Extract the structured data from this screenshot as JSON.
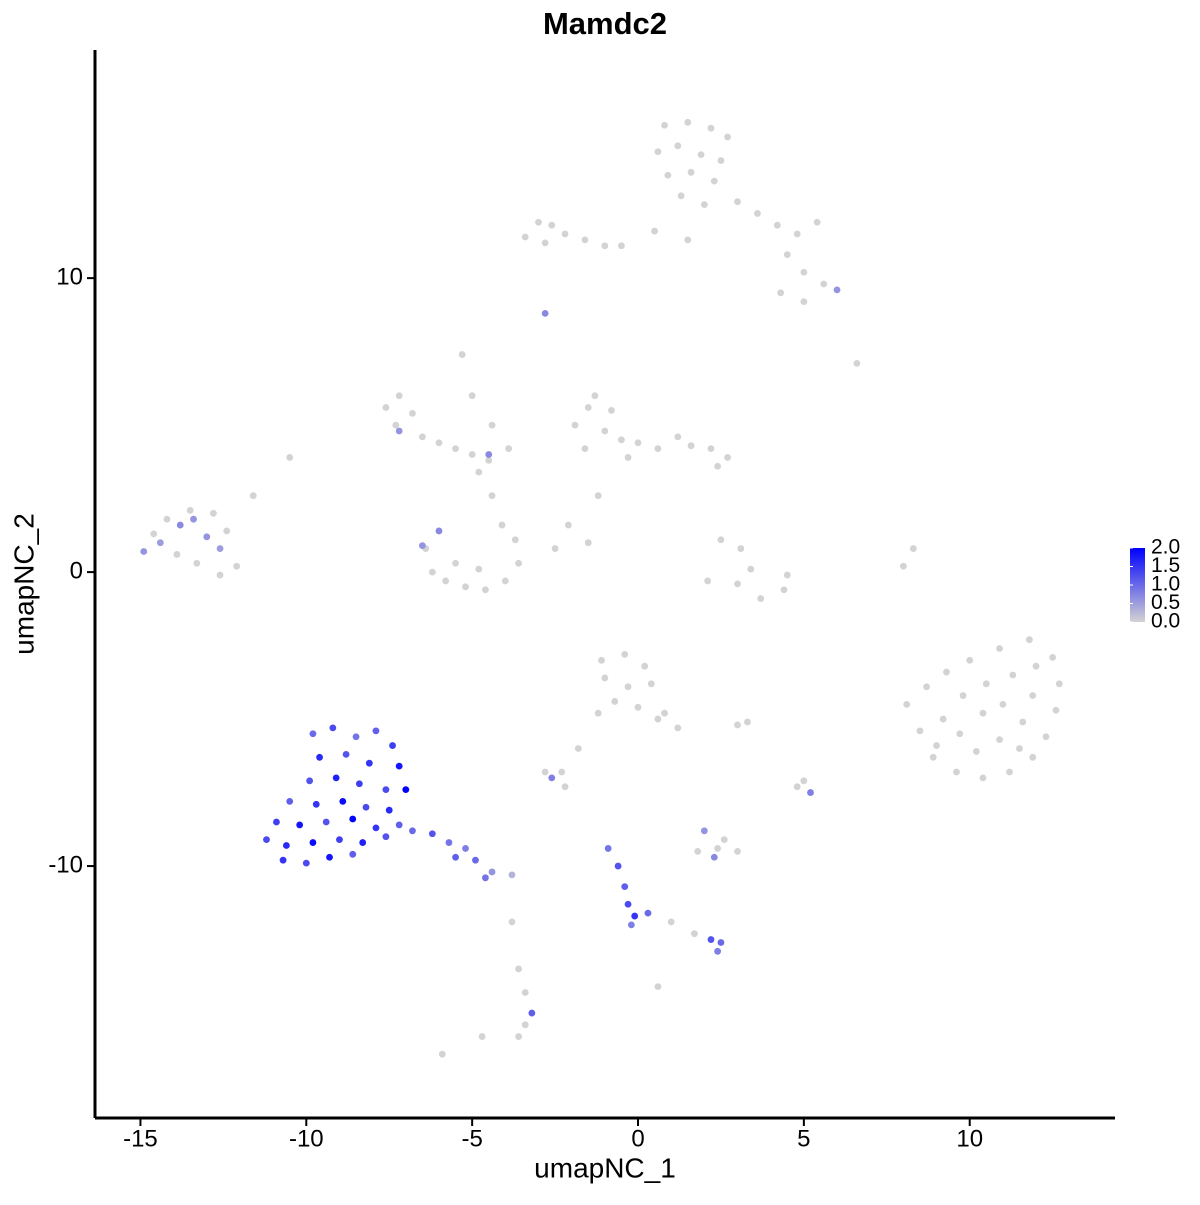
{
  "chart_data": {
    "type": "scatter",
    "title": "Mamdc2",
    "x_label": "umapNC_1",
    "y_label": "umapNC_2",
    "xlim": [
      -16.37,
      14.38
    ],
    "ylim": [
      -18.57,
      17.76
    ],
    "xticks": [
      -15,
      -10,
      -5,
      0,
      5,
      10
    ],
    "yticks": [
      -10,
      0,
      10
    ],
    "low_color": "#d3d3d3",
    "high_color": "#0000ff",
    "colorbar_lim": [
      0,
      2
    ],
    "colorbar_ticks": [
      {
        "value": 0,
        "label": "0.0"
      },
      0.5,
      {
        "value": 1,
        "label": "1.0"
      },
      1.5,
      {
        "value": 2,
        "label": "2.0"
      }
    ],
    "x": [
      0.8,
      1.5,
      2.2,
      2.7,
      0.6,
      1.2,
      1.9,
      2.5,
      0.9,
      1.6,
      2.3,
      1.3,
      2.0,
      3.0,
      3.6,
      4.2,
      4.8,
      5.4,
      4.5,
      5.0,
      5.6,
      6.0,
      4.3,
      5.0,
      0.5,
      -0.5,
      1.5,
      -3.4,
      -3.0,
      -2.6,
      -2.8,
      -2.2,
      -1.6,
      -1.0,
      -2.8,
      -7.6,
      -7.2,
      -6.8,
      -7.3,
      -6.5,
      -6.0,
      -5.5,
      -5.0,
      -4.5,
      -4.8,
      -5.3,
      -5.0,
      -4.4,
      -3.9,
      -7.2,
      -4.5,
      -6.4,
      -6.2,
      -5.8,
      -5.2,
      -4.6,
      -4.0,
      -3.6,
      -3.7,
      -4.1,
      -5.5,
      -4.8,
      -4.4,
      -6.0,
      -6.5,
      -1.9,
      -1.5,
      -1.3,
      -0.8,
      -1.0,
      -1.6,
      -0.5,
      0.0,
      0.6,
      1.2,
      1.6,
      2.2,
      2.7,
      2.4,
      -0.3,
      -1.2,
      -2.1,
      -2.5,
      -1.5,
      -14.9,
      -14.6,
      -14.2,
      -13.5,
      -12.8,
      -12.4,
      -12.1,
      -12.6,
      -13.3,
      -13.9,
      -14.4,
      -13.8,
      -13.0,
      -12.6,
      -13.4,
      -11.6,
      -10.5,
      2.5,
      3.1,
      3.4,
      3.0,
      2.1,
      3.7,
      4.4,
      4.5,
      8.0,
      8.3,
      8.1,
      8.7,
      9.3,
      10.0,
      10.9,
      11.8,
      12.5,
      12.7,
      12.6,
      12.3,
      11.9,
      11.2,
      10.4,
      9.6,
      8.9,
      8.5,
      9.2,
      9.8,
      10.5,
      11.3,
      11.9,
      11.6,
      10.9,
      10.2,
      9.7,
      10.4,
      11.0,
      9.0,
      11.5,
      12.0,
      6.6,
      -1.1,
      -0.4,
      0.2,
      0.4,
      -0.3,
      -1.0,
      -0.7,
      0.0,
      0.8,
      1.2,
      0.6,
      -1.2,
      -9.8,
      -9.2,
      -8.5,
      -7.9,
      -7.4,
      -9.6,
      -8.8,
      -8.1,
      -7.2,
      -9.9,
      -9.1,
      -8.4,
      -7.6,
      -7.0,
      -10.5,
      -9.7,
      -8.9,
      -8.2,
      -7.5,
      -10.9,
      -10.2,
      -9.4,
      -8.6,
      -7.9,
      -7.2,
      -11.2,
      -10.6,
      -9.8,
      -9.0,
      -8.3,
      -7.6,
      -10.7,
      -10.0,
      -9.3,
      -8.6,
      -6.8,
      -6.2,
      -5.7,
      -5.2,
      -4.9,
      -4.4,
      -3.8,
      -5.5,
      -4.6,
      -2.8,
      -2.3,
      -2.6,
      -1.8,
      -2.2,
      1.8,
      2.4,
      3.0,
      2.3,
      2.0,
      2.6,
      5.0,
      5.2,
      4.8,
      3.0,
      3.3,
      -0.9,
      -0.6,
      -0.4,
      -0.3,
      -0.1,
      -0.2,
      0.3,
      1.0,
      1.7,
      2.2,
      2.5,
      2.4,
      0.6,
      -3.6,
      -3.4,
      -3.2,
      -3.4,
      -3.6,
      -4.7,
      -5.9,
      -3.8
    ],
    "y": [
      15.2,
      15.3,
      15.1,
      14.8,
      14.3,
      14.5,
      14.2,
      14.0,
      13.5,
      13.6,
      13.3,
      12.8,
      12.5,
      12.6,
      12.2,
      11.8,
      11.5,
      11.9,
      10.8,
      10.2,
      9.8,
      9.6,
      9.5,
      9.2,
      11.6,
      11.1,
      11.3,
      11.4,
      11.9,
      11.8,
      11.2,
      11.5,
      11.3,
      11.1,
      8.8,
      5.6,
      6.0,
      5.4,
      5.0,
      4.6,
      4.4,
      4.2,
      4.0,
      3.8,
      3.4,
      7.4,
      6.0,
      5.0,
      4.2,
      4.8,
      4.0,
      0.8,
      0.0,
      -0.3,
      -0.5,
      -0.6,
      -0.3,
      0.3,
      1.1,
      1.6,
      0.3,
      0.1,
      2.6,
      1.4,
      0.9,
      5.0,
      5.6,
      6.0,
      5.5,
      4.8,
      4.2,
      4.5,
      4.4,
      4.2,
      4.6,
      4.3,
      4.2,
      3.9,
      3.6,
      3.9,
      2.6,
      1.6,
      0.8,
      1.0,
      0.7,
      1.3,
      1.8,
      2.1,
      2.0,
      1.4,
      0.2,
      -0.1,
      0.3,
      0.6,
      1.0,
      1.6,
      1.2,
      0.8,
      1.8,
      2.6,
      3.9,
      1.1,
      0.8,
      0.1,
      -0.4,
      -0.3,
      -0.9,
      -0.6,
      -0.1,
      0.2,
      0.8,
      -4.5,
      -3.9,
      -3.4,
      -3.0,
      -2.6,
      -2.3,
      -2.9,
      -3.8,
      -4.7,
      -5.6,
      -6.3,
      -6.8,
      -7.0,
      -6.8,
      -6.3,
      -5.4,
      -5.0,
      -4.2,
      -3.8,
      -3.5,
      -4.2,
      -5.1,
      -5.7,
      -6.1,
      -5.5,
      -4.8,
      -4.5,
      -5.9,
      -6.0,
      -3.2,
      7.1,
      -3.0,
      -2.8,
      -3.2,
      -3.8,
      -3.9,
      -3.6,
      -4.4,
      -4.6,
      -4.8,
      -5.3,
      -5.0,
      -4.8,
      -5.5,
      -5.3,
      -5.6,
      -5.4,
      -5.9,
      -6.3,
      -6.2,
      -6.5,
      -6.6,
      -7.1,
      -7.0,
      -7.2,
      -7.4,
      -7.4,
      -7.8,
      -7.9,
      -7.8,
      -8.0,
      -8.1,
      -8.5,
      -8.6,
      -8.5,
      -8.4,
      -8.7,
      -8.6,
      -9.1,
      -9.3,
      -9.2,
      -9.1,
      -9.2,
      -9.0,
      -9.8,
      -9.9,
      -9.7,
      -9.6,
      -8.8,
      -8.9,
      -9.2,
      -9.4,
      -9.8,
      -10.2,
      -10.3,
      -9.7,
      -10.4,
      -6.8,
      -6.8,
      -7.0,
      -6.0,
      -7.3,
      -9.5,
      -9.4,
      -9.5,
      -9.7,
      -8.8,
      -9.1,
      -7.1,
      -7.5,
      -7.3,
      -5.2,
      -5.1,
      -9.4,
      -10.0,
      -10.7,
      -11.3,
      -11.7,
      -12.0,
      -11.6,
      -11.9,
      -12.3,
      -12.5,
      -12.6,
      -12.9,
      -14.1,
      -13.5,
      -14.3,
      -15.0,
      -15.4,
      -15.8,
      -15.8,
      -16.4,
      -11.9
    ],
    "values": [
      0,
      0,
      0,
      0,
      0,
      0,
      0,
      0,
      0,
      0,
      0,
      0,
      0,
      0,
      0,
      0,
      0,
      0,
      0,
      0,
      0,
      0.6,
      0,
      0,
      0,
      0,
      0,
      0,
      0,
      0,
      0,
      0,
      0,
      0,
      0.7,
      0,
      0,
      0,
      0,
      0,
      0,
      0,
      0,
      0,
      0,
      0,
      0,
      0,
      0,
      0.6,
      0.7,
      0,
      0,
      0,
      0,
      0,
      0,
      0,
      0,
      0,
      0,
      0,
      0,
      0.7,
      0.6,
      0,
      0,
      0,
      0,
      0,
      0,
      0,
      0,
      0,
      0,
      0,
      0,
      0,
      0,
      0,
      0,
      0,
      0,
      0,
      0.6,
      0,
      0,
      0,
      0,
      0,
      0,
      0,
      0,
      0,
      0.5,
      0.7,
      0.6,
      0.5,
      0.6,
      0,
      0,
      0,
      0,
      0,
      0,
      0,
      0,
      0,
      0,
      0,
      0,
      0,
      0,
      0,
      0,
      0,
      0,
      0,
      0,
      0,
      0,
      0,
      0,
      0,
      0,
      0,
      0,
      0,
      0,
      0,
      0,
      0,
      0,
      0,
      0,
      0,
      0,
      0,
      0,
      0,
      0,
      0,
      0,
      0,
      0,
      0,
      0,
      0,
      0,
      0,
      0,
      0,
      0,
      0,
      1.0,
      1.3,
      0.9,
      1.1,
      1.4,
      1.6,
      1.2,
      1.5,
      1.8,
      1.2,
      1.7,
      1.4,
      1.3,
      2.0,
      1.1,
      1.5,
      1.9,
      1.3,
      1.6,
      1.4,
      1.8,
      1.2,
      2.0,
      1.5,
      1.1,
      1.3,
      1.6,
      1.9,
      1.4,
      1.7,
      1.2,
      1.5,
      1.3,
      1.8,
      1.1,
      1.0,
      1.2,
      0.9,
      0.8,
      1.0,
      0.6,
      0.3,
      1.1,
      0.9,
      0,
      0,
      0.8,
      0,
      0,
      0,
      0,
      0,
      0.7,
      0.6,
      0,
      0,
      0.8,
      0,
      0,
      0,
      0.9,
      1.2,
      1.1,
      1.3,
      1.5,
      0.8,
      1.0,
      0,
      0,
      1.2,
      1.0,
      0.8,
      0,
      0,
      0,
      1.1,
      0,
      0,
      0,
      0,
      0
    ]
  }
}
